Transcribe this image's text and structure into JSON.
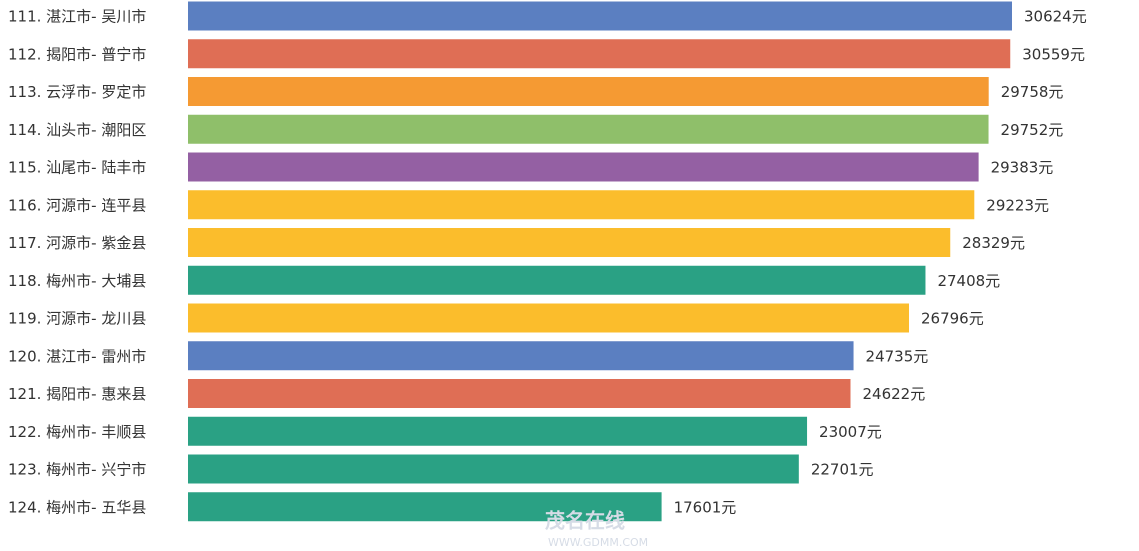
{
  "chart_data": {
    "type": "bar",
    "orientation": "horizontal",
    "categories": [
      "111. 湛江市- 吴川市",
      "112. 揭阳市- 普宁市",
      "113. 云浮市- 罗定市",
      "114. 汕头市- 潮阳区",
      "115. 汕尾市- 陆丰市",
      "116. 河源市- 连平县",
      "117. 河源市- 紫金县",
      "118. 梅州市- 大埔县",
      "119. 河源市- 龙川县",
      "120. 湛江市- 雷州市",
      "121. 揭阳市- 惠来县",
      "122. 梅州市- 丰顺县",
      "123. 梅州市- 兴宁市",
      "124. 梅州市- 五华县"
    ],
    "values": [
      30624,
      30559,
      29758,
      29752,
      29383,
      29223,
      28329,
      27408,
      26796,
      24735,
      24622,
      23007,
      22701,
      17601
    ],
    "value_labels": [
      "30624元",
      "30559元",
      "29758元",
      "29752元",
      "29383元",
      "29223元",
      "28329元",
      "27408元",
      "26796元",
      "24735元",
      "24622元",
      "23007元",
      "22701元",
      "17601元"
    ],
    "colors": [
      "#5b7fc1",
      "#df6e55",
      "#f59a33",
      "#8fbf6a",
      "#9460a3",
      "#fbbd2c",
      "#fbbd2c",
      "#2aa184",
      "#fbbd2c",
      "#5b7fc1",
      "#df6e55",
      "#2aa184",
      "#2aa184",
      "#2aa184"
    ]
  },
  "watermark": {
    "name": "茂名在线",
    "url": "WWW.GDMM.COM"
  }
}
